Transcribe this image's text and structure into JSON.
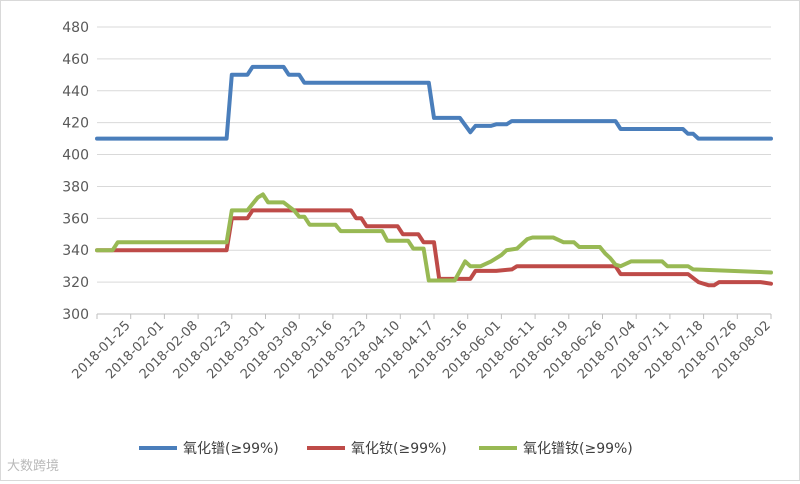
{
  "chart_data": {
    "type": "line",
    "title": "",
    "xlabel": "",
    "ylabel": "",
    "ylim": [
      300,
      480
    ],
    "yticks": [
      300,
      320,
      340,
      360,
      380,
      400,
      420,
      440,
      460,
      480
    ],
    "xtick_labels": [
      "2018-01-25",
      "2018-02-01",
      "2018-02-08",
      "2018-02-23",
      "2018-03-01",
      "2018-03-09",
      "2018-03-16",
      "2018-03-23",
      "2018-04-10",
      "2018-04-17",
      "2018-05-16",
      "2018-06-01",
      "2018-06-11",
      "2018-06-19",
      "2018-06-26",
      "2018-07-04",
      "2018-07-11",
      "2018-07-18",
      "2018-07-26",
      "2018-08-02"
    ],
    "grid": "horizontal",
    "legend_position": "bottom",
    "n_points": 131,
    "series": [
      {
        "name": "氧化镨(≥99%)",
        "color": "#4a7ebb",
        "points": [
          [
            0,
            410
          ],
          [
            24,
            410
          ],
          [
            25,
            410
          ],
          [
            26,
            450
          ],
          [
            29,
            450
          ],
          [
            30,
            455
          ],
          [
            36,
            455
          ],
          [
            37,
            450
          ],
          [
            39,
            450
          ],
          [
            40,
            445
          ],
          [
            64,
            445
          ],
          [
            65,
            423
          ],
          [
            70,
            423
          ],
          [
            72,
            414
          ],
          [
            73,
            418
          ],
          [
            76,
            418
          ],
          [
            77,
            419
          ],
          [
            79,
            419
          ],
          [
            80,
            421
          ],
          [
            100,
            421
          ],
          [
            101,
            416
          ],
          [
            113,
            416
          ],
          [
            114,
            413
          ],
          [
            115,
            413
          ],
          [
            116,
            410
          ],
          [
            130,
            410
          ]
        ]
      },
      {
        "name": "氧化钕(≥99%)",
        "color": "#be4b48",
        "points": [
          [
            0,
            340
          ],
          [
            24,
            340
          ],
          [
            25,
            340
          ],
          [
            26,
            360
          ],
          [
            29,
            360
          ],
          [
            30,
            365
          ],
          [
            49,
            365
          ],
          [
            50,
            360
          ],
          [
            51,
            360
          ],
          [
            52,
            355
          ],
          [
            58,
            355
          ],
          [
            59,
            350
          ],
          [
            62,
            350
          ],
          [
            63,
            345
          ],
          [
            65,
            345
          ],
          [
            66,
            322
          ],
          [
            70,
            322
          ],
          [
            72,
            322
          ],
          [
            73,
            327
          ],
          [
            77,
            327
          ],
          [
            80,
            328
          ],
          [
            81,
            330
          ],
          [
            100,
            330
          ],
          [
            101,
            325
          ],
          [
            114,
            325
          ],
          [
            116,
            320
          ],
          [
            118,
            318
          ],
          [
            119,
            318
          ],
          [
            120,
            320
          ],
          [
            128,
            320
          ],
          [
            130,
            319
          ]
        ]
      },
      {
        "name": "氧化镨钕(≥99%)",
        "color": "#98b954",
        "points": [
          [
            0,
            340
          ],
          [
            3,
            340
          ],
          [
            4,
            345
          ],
          [
            24,
            345
          ],
          [
            25,
            345
          ],
          [
            26,
            365
          ],
          [
            29,
            365
          ],
          [
            31,
            373
          ],
          [
            32,
            375
          ],
          [
            33,
            370
          ],
          [
            36,
            370
          ],
          [
            38,
            365
          ],
          [
            39,
            361
          ],
          [
            40,
            361
          ],
          [
            41,
            356
          ],
          [
            46,
            356
          ],
          [
            47,
            352
          ],
          [
            55,
            352
          ],
          [
            56,
            346
          ],
          [
            60,
            346
          ],
          [
            61,
            341
          ],
          [
            63,
            341
          ],
          [
            64,
            321
          ],
          [
            69,
            321
          ],
          [
            70,
            327
          ],
          [
            71,
            333
          ],
          [
            72,
            330
          ],
          [
            74,
            330
          ],
          [
            76,
            333
          ],
          [
            78,
            337
          ],
          [
            79,
            340
          ],
          [
            81,
            341
          ],
          [
            83,
            347
          ],
          [
            84,
            348
          ],
          [
            88,
            348
          ],
          [
            90,
            345
          ],
          [
            92,
            345
          ],
          [
            93,
            342
          ],
          [
            97,
            342
          ],
          [
            98,
            338
          ],
          [
            99,
            335
          ],
          [
            100,
            331
          ],
          [
            101,
            330
          ],
          [
            103,
            333
          ],
          [
            109,
            333
          ],
          [
            110,
            330
          ],
          [
            114,
            330
          ],
          [
            115,
            328
          ],
          [
            130,
            326
          ]
        ]
      }
    ]
  },
  "watermark": "大数跨境"
}
